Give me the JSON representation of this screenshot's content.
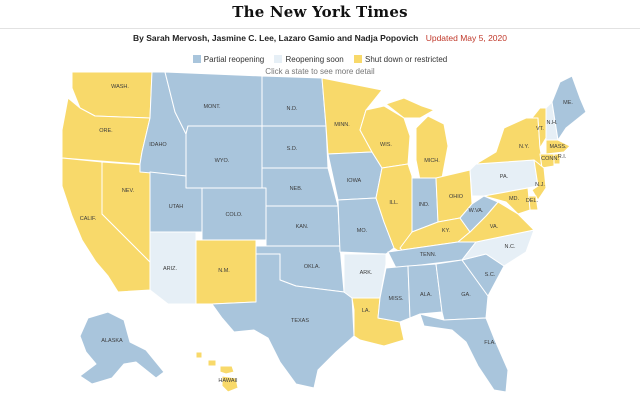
{
  "masthead": {
    "logo": "The New York Times"
  },
  "byline": {
    "authors": "By Sarah Mervosh, Jasmine C. Lee, Lazaro Gamio and Nadja Popovich",
    "updated": "Updated May 5, 2020"
  },
  "legend": {
    "items": [
      {
        "label": "Partial reopening",
        "color": "#a9c5dc"
      },
      {
        "label": "Reopening soon",
        "color": "#e6eff6"
      },
      {
        "label": "Shut down or restricted",
        "color": "#f8d96a"
      }
    ]
  },
  "hint": "Click a state to see more detail",
  "colors": {
    "partial": "#a9c5dc",
    "soon": "#e6eff6",
    "shut": "#f8d96a"
  },
  "states": [
    {
      "id": "WA",
      "label": "WASH.",
      "status": "shut"
    },
    {
      "id": "OR",
      "label": "ORE.",
      "status": "shut"
    },
    {
      "id": "CA",
      "label": "CALIF.",
      "status": "shut"
    },
    {
      "id": "NV",
      "label": "NEV.",
      "status": "shut"
    },
    {
      "id": "ID",
      "label": "IDAHO",
      "status": "partial"
    },
    {
      "id": "MT",
      "label": "MONT.",
      "status": "partial"
    },
    {
      "id": "WY",
      "label": "WYO.",
      "status": "partial"
    },
    {
      "id": "UT",
      "label": "UTAH",
      "status": "partial"
    },
    {
      "id": "AZ",
      "label": "ARIZ.",
      "status": "soon"
    },
    {
      "id": "CO",
      "label": "COLO.",
      "status": "partial"
    },
    {
      "id": "NM",
      "label": "N.M.",
      "status": "shut"
    },
    {
      "id": "ND",
      "label": "N.D.",
      "status": "partial"
    },
    {
      "id": "SD",
      "label": "S.D.",
      "status": "partial"
    },
    {
      "id": "NE",
      "label": "NEB.",
      "status": "partial"
    },
    {
      "id": "KS",
      "label": "KAN.",
      "status": "partial"
    },
    {
      "id": "OK",
      "label": "OKLA.",
      "status": "partial"
    },
    {
      "id": "TX",
      "label": "TEXAS",
      "status": "partial"
    },
    {
      "id": "MN",
      "label": "MINN.",
      "status": "shut"
    },
    {
      "id": "IA",
      "label": "IOWA",
      "status": "partial"
    },
    {
      "id": "MO",
      "label": "MO.",
      "status": "partial"
    },
    {
      "id": "AR",
      "label": "ARK.",
      "status": "soon"
    },
    {
      "id": "LA",
      "label": "LA.",
      "status": "shut"
    },
    {
      "id": "WI",
      "label": "WIS.",
      "status": "shut"
    },
    {
      "id": "IL",
      "label": "ILL.",
      "status": "shut"
    },
    {
      "id": "MI",
      "label": "MICH.",
      "status": "shut"
    },
    {
      "id": "IN",
      "label": "IND.",
      "status": "partial"
    },
    {
      "id": "OH",
      "label": "OHIO",
      "status": "shut"
    },
    {
      "id": "KY",
      "label": "KY.",
      "status": "shut"
    },
    {
      "id": "TN",
      "label": "TENN.",
      "status": "partial"
    },
    {
      "id": "MS",
      "label": "MISS.",
      "status": "partial"
    },
    {
      "id": "AL",
      "label": "ALA.",
      "status": "partial"
    },
    {
      "id": "GA",
      "label": "GA.",
      "status": "partial"
    },
    {
      "id": "FL",
      "label": "FLA.",
      "status": "partial"
    },
    {
      "id": "SC",
      "label": "S.C.",
      "status": "partial"
    },
    {
      "id": "NC",
      "label": "N.C.",
      "status": "soon"
    },
    {
      "id": "VA",
      "label": "VA.",
      "status": "shut"
    },
    {
      "id": "WV",
      "label": "W.VA.",
      "status": "partial"
    },
    {
      "id": "PA",
      "label": "PA.",
      "status": "soon"
    },
    {
      "id": "NY",
      "label": "N.Y.",
      "status": "shut"
    },
    {
      "id": "VT",
      "label": "VT.",
      "status": "shut"
    },
    {
      "id": "NH",
      "label": "N.H.",
      "status": "soon"
    },
    {
      "id": "ME",
      "label": "ME.",
      "status": "partial"
    },
    {
      "id": "MA",
      "label": "MASS.",
      "status": "shut"
    },
    {
      "id": "CT",
      "label": "CONN.",
      "status": "shut"
    },
    {
      "id": "RI",
      "label": "R.I.",
      "status": "shut"
    },
    {
      "id": "NJ",
      "label": "N.J.",
      "status": "shut"
    },
    {
      "id": "DE",
      "label": "DEL.",
      "status": "shut"
    },
    {
      "id": "MD",
      "label": "MD.",
      "status": "shut"
    },
    {
      "id": "AK",
      "label": "ALASKA",
      "status": "partial"
    },
    {
      "id": "HI",
      "label": "HAWAII",
      "status": "shut"
    }
  ]
}
